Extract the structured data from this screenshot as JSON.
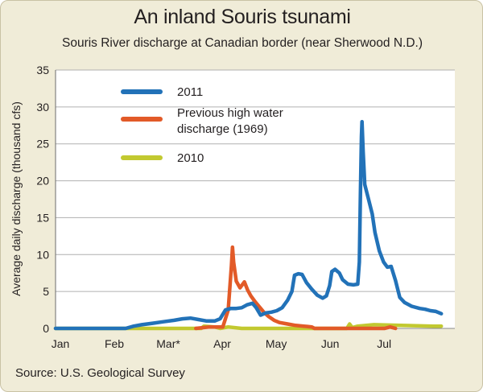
{
  "title": "An inland Souris tsunami",
  "subtitle": "Souris River discharge at Canadian border (near Sherwood N.D.)",
  "source": "Source: U.S. Geological Survey",
  "chart_data": {
    "type": "line",
    "ylabel": "Average daily discharge (thousand cfs)",
    "ylim": [
      0,
      35
    ],
    "yticks": [
      0,
      5,
      10,
      15,
      20,
      25,
      30,
      35
    ],
    "xlim": [
      0,
      7.4
    ],
    "xticks": [
      {
        "label": "Jan",
        "month": 0
      },
      {
        "label": "Feb",
        "month": 1
      },
      {
        "label": "Mar*",
        "month": 2
      },
      {
        "label": "Apr",
        "month": 3
      },
      {
        "label": "May",
        "month": 4
      },
      {
        "label": "Jun",
        "month": 5
      },
      {
        "label": "Jul",
        "month": 6
      }
    ],
    "grid": "horizontal",
    "legend_position": "top-left",
    "series": [
      {
        "name": "2011",
        "color": "#2272b8",
        "points": [
          [
            0,
            0
          ],
          [
            1.3,
            0
          ],
          [
            1.45,
            0.3
          ],
          [
            1.6,
            0.5
          ],
          [
            1.8,
            0.7
          ],
          [
            2.0,
            0.9
          ],
          [
            2.2,
            1.1
          ],
          [
            2.35,
            1.3
          ],
          [
            2.5,
            1.4
          ],
          [
            2.65,
            1.2
          ],
          [
            2.8,
            1.0
          ],
          [
            2.95,
            1.0
          ],
          [
            3.05,
            1.3
          ],
          [
            3.15,
            2.5
          ],
          [
            3.25,
            2.7
          ],
          [
            3.35,
            2.7
          ],
          [
            3.45,
            2.8
          ],
          [
            3.55,
            3.2
          ],
          [
            3.65,
            3.4
          ],
          [
            3.72,
            2.8
          ],
          [
            3.8,
            1.8
          ],
          [
            3.9,
            2.1
          ],
          [
            4.0,
            2.2
          ],
          [
            4.1,
            2.4
          ],
          [
            4.2,
            2.8
          ],
          [
            4.3,
            3.8
          ],
          [
            4.38,
            5.0
          ],
          [
            4.43,
            7.2
          ],
          [
            4.5,
            7.4
          ],
          [
            4.57,
            7.3
          ],
          [
            4.65,
            6.2
          ],
          [
            4.75,
            5.3
          ],
          [
            4.85,
            4.5
          ],
          [
            4.95,
            4.1
          ],
          [
            5.02,
            4.4
          ],
          [
            5.08,
            5.8
          ],
          [
            5.12,
            7.7
          ],
          [
            5.18,
            8.0
          ],
          [
            5.26,
            7.5
          ],
          [
            5.32,
            6.6
          ],
          [
            5.42,
            6.0
          ],
          [
            5.52,
            5.9
          ],
          [
            5.6,
            6.0
          ],
          [
            5.63,
            9.0
          ],
          [
            5.65,
            18.0
          ],
          [
            5.67,
            26.0
          ],
          [
            5.68,
            28.0
          ],
          [
            5.7,
            24.0
          ],
          [
            5.73,
            19.5
          ],
          [
            5.8,
            17.5
          ],
          [
            5.87,
            15.5
          ],
          [
            5.92,
            13.0
          ],
          [
            6.0,
            10.5
          ],
          [
            6.08,
            9.0
          ],
          [
            6.15,
            8.3
          ],
          [
            6.22,
            8.4
          ],
          [
            6.3,
            6.5
          ],
          [
            6.38,
            4.2
          ],
          [
            6.47,
            3.5
          ],
          [
            6.6,
            3.0
          ],
          [
            6.75,
            2.7
          ],
          [
            6.85,
            2.6
          ],
          [
            6.95,
            2.4
          ],
          [
            7.05,
            2.3
          ],
          [
            7.15,
            2.0
          ]
        ]
      },
      {
        "name": "Previous high water discharge (1969)",
        "color": "#e25a28",
        "points": [
          [
            2.6,
            0
          ],
          [
            2.85,
            0.2
          ],
          [
            3.1,
            0.2
          ],
          [
            3.2,
            2.5
          ],
          [
            3.26,
            8.5
          ],
          [
            3.28,
            11.0
          ],
          [
            3.3,
            9.0
          ],
          [
            3.35,
            6.4
          ],
          [
            3.42,
            5.5
          ],
          [
            3.5,
            6.3
          ],
          [
            3.56,
            5.2
          ],
          [
            3.62,
            4.4
          ],
          [
            3.7,
            3.6
          ],
          [
            3.78,
            2.9
          ],
          [
            3.86,
            2.2
          ],
          [
            3.95,
            1.6
          ],
          [
            4.05,
            1.1
          ],
          [
            4.15,
            0.8
          ],
          [
            4.3,
            0.6
          ],
          [
            4.45,
            0.4
          ],
          [
            4.6,
            0.3
          ],
          [
            4.75,
            0.2
          ],
          [
            4.8,
            0
          ],
          [
            6.1,
            0
          ],
          [
            6.2,
            0.2
          ],
          [
            6.3,
            0
          ]
        ]
      },
      {
        "name": "2010",
        "color": "#c2c930",
        "points": [
          [
            0,
            0
          ],
          [
            2.7,
            0
          ],
          [
            2.75,
            0.3
          ],
          [
            2.95,
            0.2
          ],
          [
            3.05,
            0
          ],
          [
            3.2,
            0.2
          ],
          [
            3.45,
            0
          ],
          [
            5.4,
            0
          ],
          [
            5.45,
            0.6
          ],
          [
            5.5,
            0.1
          ],
          [
            5.6,
            0.3
          ],
          [
            5.9,
            0.5
          ],
          [
            6.4,
            0.4
          ],
          [
            7.0,
            0.3
          ],
          [
            7.15,
            0.3
          ]
        ]
      }
    ]
  }
}
